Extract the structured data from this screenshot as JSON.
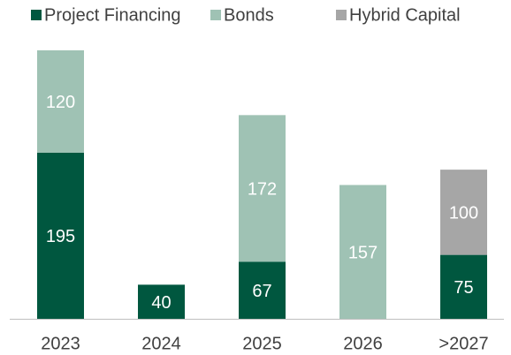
{
  "chart_data": {
    "type": "bar",
    "stacked": true,
    "categories": [
      "2023",
      "2024",
      "2025",
      "2026",
      ">2027"
    ],
    "series": [
      {
        "name": "Project Financing",
        "color": "#00573f",
        "values": [
          195,
          40,
          67,
          null,
          75
        ]
      },
      {
        "name": "Bonds",
        "color": "#9fc2b4",
        "values": [
          120,
          null,
          172,
          157,
          null
        ]
      },
      {
        "name": "Hybrid Capital",
        "color": "#a6a6a6",
        "values": [
          null,
          null,
          null,
          null,
          100
        ]
      }
    ],
    "legend": "top"
  }
}
